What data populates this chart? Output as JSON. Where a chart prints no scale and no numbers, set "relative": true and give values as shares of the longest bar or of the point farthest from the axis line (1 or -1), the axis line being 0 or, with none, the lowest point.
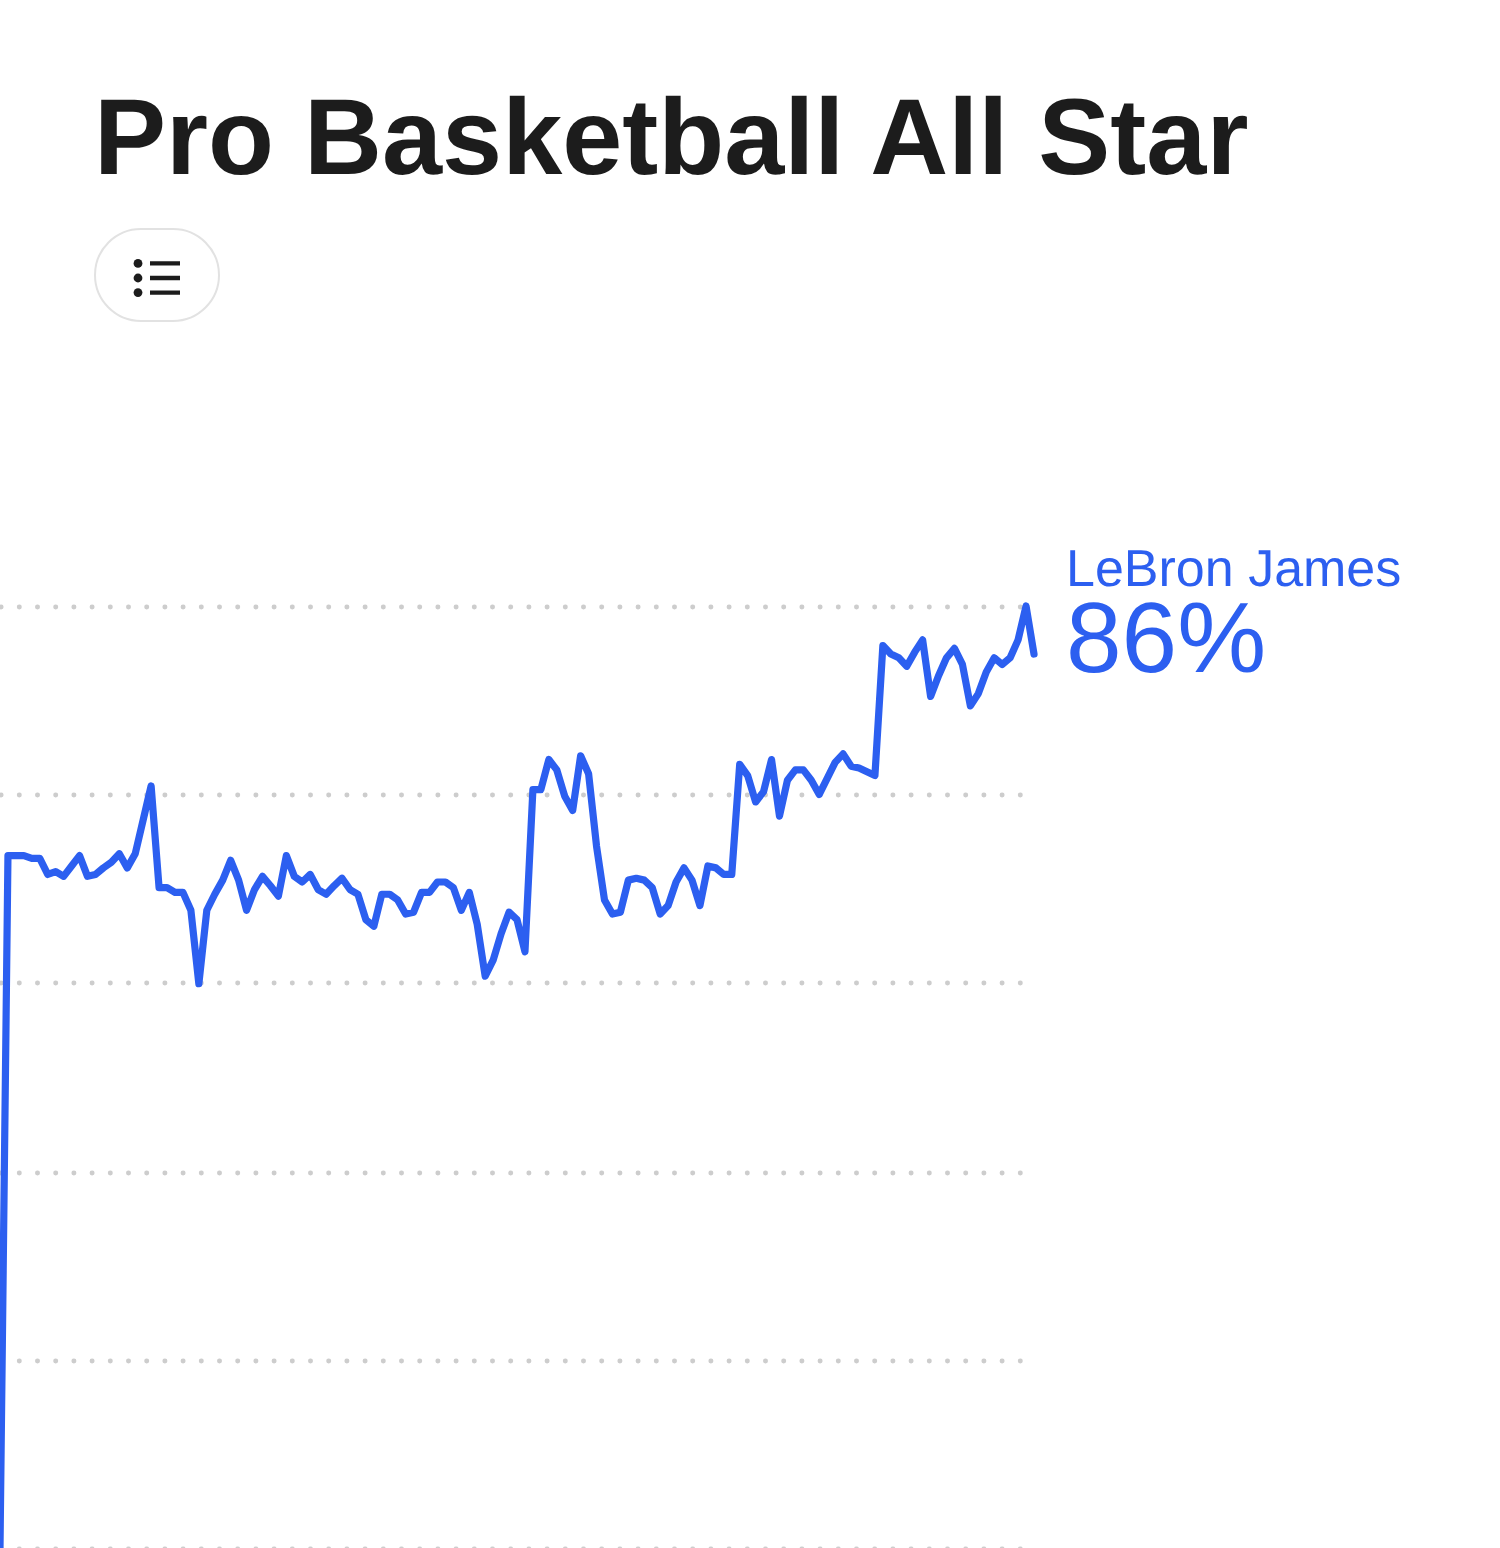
{
  "chart_data": {
    "type": "line",
    "title": "Pro Basketball All Star",
    "relative": true,
    "categories": [
      null,
      null,
      null,
      null,
      null,
      null,
      null,
      null,
      null,
      null,
      null,
      null,
      null,
      null,
      null,
      null,
      null,
      null,
      null,
      null,
      null,
      null,
      null,
      null,
      null,
      null,
      null,
      null,
      null,
      null,
      null,
      null,
      null,
      null,
      null,
      null,
      null,
      null,
      null,
      null,
      null,
      null,
      null,
      null,
      null,
      null,
      null,
      null,
      null,
      null,
      null,
      null,
      null,
      null,
      null,
      null,
      null,
      null,
      null,
      null,
      null,
      null,
      null,
      null,
      null,
      null,
      null,
      null,
      null,
      null,
      null,
      null,
      null,
      null,
      null,
      null,
      null,
      null,
      null,
      null,
      null,
      null,
      null,
      null,
      null,
      null,
      null,
      null,
      null,
      null,
      null,
      null,
      null,
      null,
      null,
      null,
      null,
      null,
      null,
      null,
      null,
      null,
      null,
      null,
      null,
      null,
      null,
      null,
      null,
      null,
      null,
      null,
      null,
      null,
      null,
      null,
      null,
      null,
      null,
      null,
      null,
      null,
      null,
      null,
      null,
      null,
      null,
      null,
      null,
      null,
      null
    ],
    "series": [
      {
        "name": "LeBron James",
        "color": "#2c5ff0",
        "values": [
          0,
          0.735,
          0.735,
          0.735,
          0.732,
          0.732,
          0.715,
          0.718,
          0.713,
          0.724,
          0.735,
          0.713,
          0.715,
          0.722,
          0.728,
          0.737,
          0.722,
          0.737,
          0.773,
          0.809,
          0.701,
          0.701,
          0.696,
          0.696,
          0.677,
          0.599,
          0.677,
          0.694,
          0.709,
          0.73,
          0.709,
          0.677,
          0.699,
          0.713,
          0.703,
          0.692,
          0.735,
          0.713,
          0.707,
          0.715,
          0.699,
          0.694,
          0.703,
          0.711,
          0.699,
          0.694,
          0.667,
          0.66,
          0.694,
          0.694,
          0.688,
          0.673,
          0.675,
          0.696,
          0.696,
          0.707,
          0.707,
          0.701,
          0.677,
          0.696,
          0.662,
          0.607,
          0.624,
          0.652,
          0.675,
          0.667,
          0.633,
          0.805,
          0.805,
          0.837,
          0.826,
          0.798,
          0.783,
          0.841,
          0.822,
          0.745,
          0.688,
          0.673,
          0.675,
          0.709,
          0.711,
          0.709,
          0.701,
          0.673,
          0.682,
          0.707,
          0.722,
          0.709,
          0.682,
          0.724,
          0.722,
          0.715,
          0.715,
          0.832,
          0.82,
          0.792,
          0.803,
          0.837,
          0.777,
          0.815,
          0.826,
          0.826,
          0.815,
          0.8,
          0.817,
          0.834,
          0.843,
          0.83,
          0.828,
          0.824,
          0.82,
          0.958,
          0.949,
          0.945,
          0.936,
          0.951,
          0.964,
          0.904,
          0.926,
          0.945,
          0.955,
          0.938,
          0.894,
          0.907,
          0.93,
          0.945,
          0.938,
          0.945,
          0.964,
          1,
          0.949
        ]
      }
    ],
    "annotations": [
      "86%"
    ],
    "grid": "y"
  }
}
